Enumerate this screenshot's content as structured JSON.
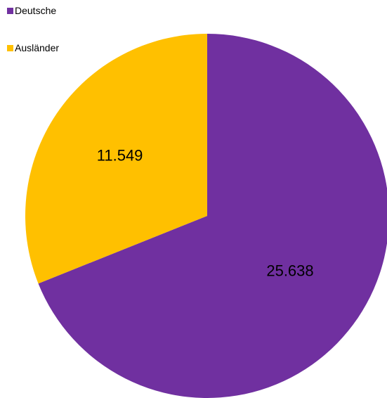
{
  "chart_data": {
    "type": "pie",
    "categories": [
      "Deutsche",
      "Ausländer"
    ],
    "values": [
      25638,
      11549
    ],
    "data_labels": [
      "25.638",
      "11.549"
    ],
    "colors": [
      "#7030A0",
      "#FFC000"
    ],
    "start_angle": "12 o'clock",
    "direction": "clockwise",
    "legend_placement": "top-left"
  }
}
